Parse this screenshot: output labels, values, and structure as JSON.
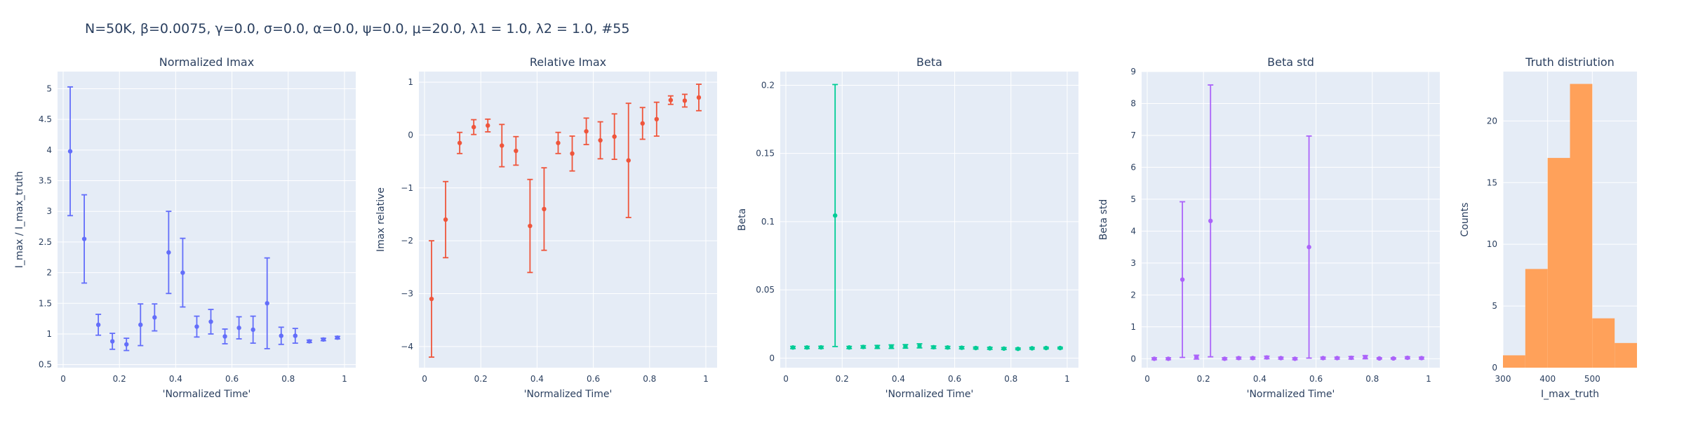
{
  "figure": {
    "title": "N=50K, β=0.0075, γ=0.0, σ=0.0,  α=0.0, ψ=0.0, μ=20.0, λ1 = 1.0, λ2 = 1.0, #55"
  },
  "colors": {
    "plot_bg": "#e5ecf6",
    "grid": "#ffffff",
    "text": "#2a3f5f",
    "blue": "#636efa",
    "red": "#ef553b",
    "green": "#00cc96",
    "purple": "#ab63fa",
    "orange": "#ffa15a"
  },
  "chart_data": [
    {
      "type": "scatter",
      "title": "Normalized Imax",
      "xlabel": "'Normalized Time'",
      "ylabel": "I_max / I_max_truth",
      "color": "blue",
      "xlim": [
        -0.02,
        1.04
      ],
      "ylim": [
        0.45,
        5.28
      ],
      "xticks": [
        0,
        0.2,
        0.4,
        0.6,
        0.8,
        1
      ],
      "xtick_labels": [
        "0",
        "0.2",
        "0.4",
        "0.6",
        "0.8",
        "1"
      ],
      "yticks": [
        0.5,
        1,
        1.5,
        2,
        2.5,
        3,
        3.5,
        4,
        4.5,
        5
      ],
      "ytick_labels": [
        "0.5",
        "1",
        "1.5",
        "2",
        "2.5",
        "3",
        "3.5",
        "4",
        "4.5",
        "5"
      ],
      "x": [
        0.025,
        0.075,
        0.125,
        0.175,
        0.225,
        0.275,
        0.325,
        0.375,
        0.425,
        0.475,
        0.525,
        0.575,
        0.625,
        0.675,
        0.725,
        0.775,
        0.825,
        0.875,
        0.925,
        0.975
      ],
      "y": [
        3.98,
        2.55,
        1.15,
        0.88,
        0.83,
        1.15,
        1.27,
        2.33,
        2.0,
        1.12,
        1.2,
        0.96,
        1.1,
        1.07,
        1.5,
        0.97,
        0.97,
        0.88,
        0.91,
        0.94
      ],
      "err_plus": [
        1.05,
        0.72,
        0.17,
        0.13,
        0.1,
        0.34,
        0.22,
        0.67,
        0.56,
        0.17,
        0.2,
        0.12,
        0.18,
        0.22,
        0.74,
        0.14,
        0.12,
        0.02,
        0.02,
        0.02
      ],
      "err_minus": [
        1.05,
        0.72,
        0.17,
        0.13,
        0.1,
        0.34,
        0.22,
        0.67,
        0.56,
        0.17,
        0.2,
        0.12,
        0.18,
        0.22,
        0.74,
        0.14,
        0.12,
        0.02,
        0.02,
        0.02
      ]
    },
    {
      "type": "scatter",
      "title": "Relative Imax",
      "xlabel": "'Normalized Time'",
      "ylabel": "Imax relative",
      "color": "red",
      "xlim": [
        -0.02,
        1.04
      ],
      "ylim": [
        -4.4,
        1.2
      ],
      "xticks": [
        0,
        0.2,
        0.4,
        0.6,
        0.8,
        1
      ],
      "xtick_labels": [
        "0",
        "0.2",
        "0.4",
        "0.6",
        "0.8",
        "1"
      ],
      "yticks": [
        -4,
        -3,
        -2,
        -1,
        0,
        1
      ],
      "ytick_labels": [
        "−4",
        "−3",
        "−2",
        "−1",
        "0",
        "1"
      ],
      "x": [
        0.025,
        0.075,
        0.125,
        0.175,
        0.225,
        0.275,
        0.325,
        0.375,
        0.425,
        0.475,
        0.525,
        0.575,
        0.625,
        0.675,
        0.725,
        0.775,
        0.825,
        0.875,
        0.925,
        0.975
      ],
      "y": [
        -3.1,
        -1.6,
        -0.15,
        0.15,
        0.18,
        -0.2,
        -0.3,
        -1.72,
        -1.4,
        -0.15,
        -0.35,
        0.07,
        -0.1,
        -0.03,
        -0.48,
        0.22,
        0.3,
        0.66,
        0.65,
        0.71
      ],
      "err_plus": [
        1.1,
        0.72,
        0.2,
        0.14,
        0.12,
        0.4,
        0.27,
        0.88,
        0.78,
        0.2,
        0.33,
        0.25,
        0.35,
        0.43,
        1.08,
        0.3,
        0.32,
        0.08,
        0.12,
        0.25
      ],
      "err_minus": [
        1.1,
        0.72,
        0.2,
        0.14,
        0.12,
        0.4,
        0.27,
        0.88,
        0.78,
        0.2,
        0.33,
        0.25,
        0.35,
        0.43,
        1.08,
        0.3,
        0.32,
        0.08,
        0.12,
        0.25
      ]
    },
    {
      "type": "scatter",
      "title": "Beta",
      "xlabel": "'Normalized Time'",
      "ylabel": "Beta",
      "color": "green",
      "xlim": [
        -0.02,
        1.04
      ],
      "ylim": [
        -0.007,
        0.21
      ],
      "xticks": [
        0,
        0.2,
        0.4,
        0.6,
        0.8,
        1
      ],
      "xtick_labels": [
        "0",
        "0.2",
        "0.4",
        "0.6",
        "0.8",
        "1"
      ],
      "yticks": [
        0,
        0.05,
        0.1,
        0.15,
        0.2
      ],
      "ytick_labels": [
        "0",
        "0.05",
        "0.1",
        "0.15",
        "0.2"
      ],
      "x": [
        0.025,
        0.075,
        0.125,
        0.175,
        0.225,
        0.275,
        0.325,
        0.375,
        0.425,
        0.475,
        0.525,
        0.575,
        0.625,
        0.675,
        0.725,
        0.775,
        0.825,
        0.875,
        0.925,
        0.975
      ],
      "y": [
        0.0078,
        0.0078,
        0.0079,
        0.1045,
        0.0078,
        0.0082,
        0.0082,
        0.0084,
        0.0086,
        0.009,
        0.008,
        0.0078,
        0.0076,
        0.0074,
        0.0072,
        0.007,
        0.0068,
        0.0072,
        0.0074,
        0.0074
      ],
      "err_plus": [
        0.0008,
        0.0008,
        0.0008,
        0.096,
        0.0008,
        0.0009,
        0.0011,
        0.0013,
        0.0013,
        0.0015,
        0.0009,
        0.0008,
        0.0008,
        0.0007,
        0.0007,
        0.0007,
        0.0006,
        0.0006,
        0.0006,
        0.0006
      ],
      "err_minus": [
        0.0008,
        0.0008,
        0.0008,
        0.096,
        0.0008,
        0.0009,
        0.0011,
        0.0013,
        0.0013,
        0.0015,
        0.0009,
        0.0008,
        0.0008,
        0.0007,
        0.0007,
        0.0007,
        0.0006,
        0.0006,
        0.0006,
        0.0006
      ]
    },
    {
      "type": "scatter",
      "title": "Beta std",
      "xlabel": "'Normalized Time'",
      "ylabel": "Beta std",
      "color": "purple",
      "xlim": [
        -0.02,
        1.04
      ],
      "ylim": [
        -0.28,
        9.0
      ],
      "xticks": [
        0,
        0.2,
        0.4,
        0.6,
        0.8,
        1
      ],
      "xtick_labels": [
        "0",
        "0.2",
        "0.4",
        "0.6",
        "0.8",
        "1"
      ],
      "yticks": [
        0,
        1,
        2,
        3,
        4,
        5,
        6,
        7,
        8,
        9
      ],
      "ytick_labels": [
        "0",
        "1",
        "2",
        "3",
        "4",
        "5",
        "6",
        "7",
        "8",
        "9"
      ],
      "x": [
        0.025,
        0.075,
        0.125,
        0.175,
        0.225,
        0.275,
        0.325,
        0.375,
        0.425,
        0.475,
        0.525,
        0.575,
        0.625,
        0.675,
        0.725,
        0.775,
        0.825,
        0.875,
        0.925,
        0.975
      ],
      "y": [
        0.0,
        0.0,
        2.48,
        0.05,
        4.32,
        0.0,
        0.02,
        0.02,
        0.04,
        0.02,
        0.0,
        3.5,
        0.02,
        0.02,
        0.03,
        0.05,
        0.01,
        0.01,
        0.03,
        0.02
      ],
      "err_plus": [
        0.03,
        0.03,
        2.44,
        0.06,
        4.26,
        0.03,
        0.03,
        0.03,
        0.04,
        0.03,
        0.03,
        3.48,
        0.03,
        0.03,
        0.04,
        0.05,
        0.02,
        0.02,
        0.03,
        0.03
      ],
      "err_minus": [
        0.03,
        0.03,
        2.44,
        0.06,
        4.26,
        0.03,
        0.03,
        0.03,
        0.04,
        0.03,
        0.03,
        3.48,
        0.03,
        0.03,
        0.04,
        0.05,
        0.02,
        0.02,
        0.03,
        0.03
      ]
    },
    {
      "type": "bar",
      "title": "Truth distriution",
      "xlabel": "I_max_truth",
      "ylabel": "Counts",
      "color": "orange",
      "xlim": [
        300,
        600
      ],
      "ylim": [
        0,
        24
      ],
      "xticks": [
        300,
        400,
        500
      ],
      "xtick_labels": [
        "300",
        "400",
        "500"
      ],
      "yticks": [
        0,
        5,
        10,
        15,
        20
      ],
      "ytick_labels": [
        "0",
        "5",
        "10",
        "15",
        "20"
      ],
      "bins": [
        [
          300,
          350
        ],
        [
          350,
          400
        ],
        [
          400,
          450
        ],
        [
          450,
          500
        ],
        [
          500,
          550
        ],
        [
          550,
          600
        ]
      ],
      "counts": [
        1,
        8,
        17,
        23,
        4,
        2
      ]
    }
  ]
}
